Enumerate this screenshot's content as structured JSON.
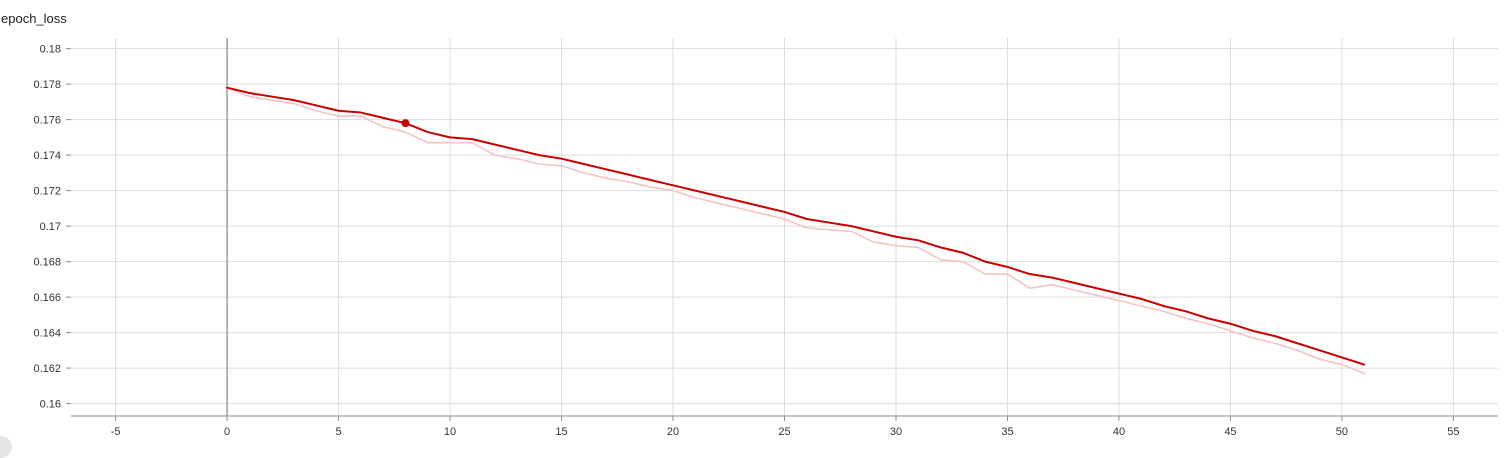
{
  "chart_data": {
    "type": "line",
    "title": "epoch_loss",
    "xlabel": "",
    "ylabel": "",
    "xlim": [
      -7,
      57
    ],
    "ylim": [
      0.1593,
      0.1806
    ],
    "x_ticks": [
      -5,
      0,
      5,
      10,
      15,
      20,
      25,
      30,
      35,
      40,
      45,
      50,
      55
    ],
    "y_ticks": [
      0.16,
      0.162,
      0.164,
      0.166,
      0.168,
      0.17,
      0.172,
      0.174,
      0.176,
      0.178,
      0.18
    ],
    "y_tick_labels": [
      "0.16",
      "0.162",
      "0.164",
      "0.166",
      "0.168",
      "0.17",
      "0.172",
      "0.174",
      "0.176",
      "0.178",
      "0.18"
    ],
    "grid": true,
    "series": [
      {
        "role": "smoothed",
        "color": "#c80000",
        "x": [
          0,
          1,
          2,
          3,
          4,
          5,
          6,
          7,
          8,
          9,
          10,
          11,
          12,
          13,
          14,
          15,
          16,
          17,
          18,
          19,
          20,
          21,
          22,
          23,
          24,
          25,
          26,
          27,
          28,
          29,
          30,
          31,
          32,
          33,
          34,
          35,
          36,
          37,
          38,
          39,
          40,
          41,
          42,
          43,
          44,
          45,
          46,
          47,
          48,
          49,
          50,
          51
        ],
        "values": [
          0.1778,
          0.1775,
          0.1773,
          0.1771,
          0.1768,
          0.1765,
          0.1764,
          0.1761,
          0.1758,
          0.1753,
          0.175,
          0.1749,
          0.1746,
          0.1743,
          0.174,
          0.1738,
          0.1735,
          0.1732,
          0.1729,
          0.1726,
          0.1723,
          0.172,
          0.1717,
          0.1714,
          0.1711,
          0.1708,
          0.1704,
          0.1702,
          0.17,
          0.1697,
          0.1694,
          0.1692,
          0.1688,
          0.1685,
          0.168,
          0.1677,
          0.1673,
          0.1671,
          0.1668,
          0.1665,
          0.1662,
          0.1659,
          0.1655,
          0.1652,
          0.1648,
          0.1645,
          0.1641,
          0.1638,
          0.1634,
          0.163,
          0.1626,
          0.1622
        ]
      },
      {
        "role": "raw",
        "color": "#f6c3c3",
        "x": [
          0,
          1,
          2,
          3,
          4,
          5,
          6,
          7,
          8,
          9,
          10,
          11,
          12,
          13,
          14,
          15,
          16,
          17,
          18,
          19,
          20,
          21,
          22,
          23,
          24,
          25,
          26,
          27,
          28,
          29,
          30,
          31,
          32,
          33,
          34,
          35,
          36,
          37,
          38,
          39,
          40,
          41,
          42,
          43,
          44,
          45,
          46,
          47,
          48,
          49,
          50,
          51
        ],
        "values": [
          0.1778,
          0.1773,
          0.1771,
          0.1769,
          0.1765,
          0.1762,
          0.1762,
          0.1756,
          0.1753,
          0.1747,
          0.1747,
          0.1747,
          0.174,
          0.1738,
          0.1735,
          0.1734,
          0.173,
          0.1727,
          0.1725,
          0.1722,
          0.172,
          0.1716,
          0.1713,
          0.171,
          0.1707,
          0.1704,
          0.1699,
          0.1698,
          0.1697,
          0.1691,
          0.1689,
          0.1688,
          0.1681,
          0.168,
          0.1673,
          0.1673,
          0.1665,
          0.1667,
          0.1664,
          0.1661,
          0.1658,
          0.1655,
          0.1652,
          0.1648,
          0.1645,
          0.1641,
          0.1637,
          0.1634,
          0.163,
          0.1625,
          0.1622,
          0.1617
        ]
      }
    ],
    "highlight_point": {
      "x": 8,
      "y": 0.1758
    }
  }
}
